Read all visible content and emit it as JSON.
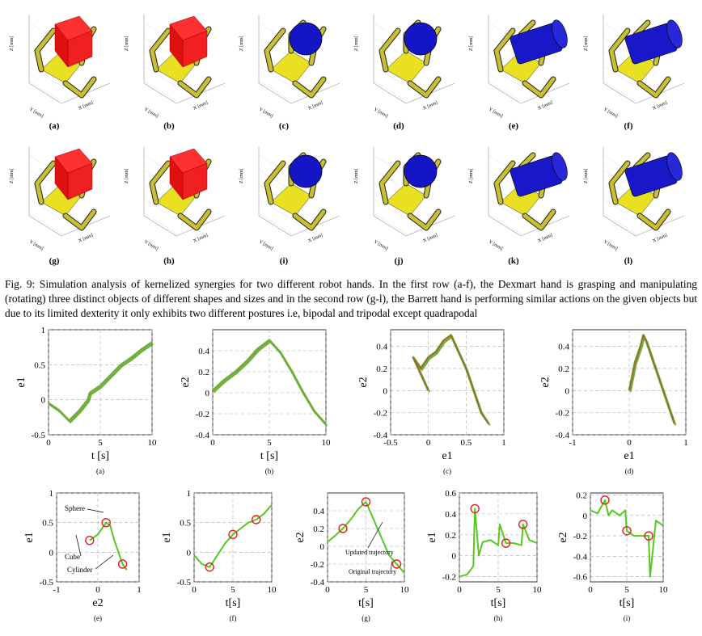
{
  "figure9": {
    "panel_labels": [
      "(a)",
      "(b)",
      "(c)",
      "(d)",
      "(e)",
      "(f)",
      "(g)",
      "(h)",
      "(i)",
      "(j)",
      "(k)",
      "(l)"
    ],
    "axis_labels": {
      "z": "Z [mm]",
      "y": "Y [mm]",
      "x": "X [mm]"
    },
    "caption": "Fig. 9: Simulation analysis of kernelized synergies for two different robot hands. In the first row (a-f), the Dexmart hand is grasping and manipulating (rotating) three distinct objects of different shapes and sizes and in the second row (g-l), the Barrett hand is performing similar actions on the given objects but due to its limited dexterity it only exhibits two different postures i.e, bipodal and tripodal except quadrapodal"
  },
  "figure10": {
    "sub_labels": [
      "(a)",
      "(b)",
      "(c)",
      "(d)",
      "(e)",
      "(f)",
      "(g)",
      "(h)",
      "(i)"
    ],
    "annotations": {
      "sphere": "Sphere",
      "cube": "Cube",
      "cylinder": "Cylinder",
      "updated": "Updated trajectory",
      "original": "Original trajectory"
    },
    "colors": {
      "green": "#6fae3b",
      "bright_green": "#55c81e",
      "red_circle": "#e02020",
      "brown": "#b04a2a"
    }
  },
  "chart_data": [
    {
      "type": "line",
      "id": "a",
      "xlabel": "t [s]",
      "ylabel": "e1",
      "xticks": [
        "0",
        "5",
        "10"
      ],
      "yticks": [
        "-0.5",
        "0",
        "0.5",
        "1"
      ],
      "xlim": [
        0,
        10
      ],
      "ylim": [
        -0.5,
        1
      ],
      "series": [
        {
          "x": [
            0,
            1,
            2,
            3,
            3.8,
            4,
            5,
            6,
            7,
            8,
            9,
            10
          ],
          "y": [
            -0.05,
            -0.15,
            -0.3,
            -0.15,
            0.0,
            0.1,
            0.2,
            0.35,
            0.5,
            0.6,
            0.72,
            0.82
          ]
        }
      ]
    },
    {
      "type": "line",
      "id": "b",
      "xlabel": "t [s]",
      "ylabel": "e2",
      "xticks": [
        "0",
        "5",
        "10"
      ],
      "yticks": [
        "-0.4",
        "-0.2",
        "0",
        "0.2",
        "0.4"
      ],
      "xlim": [
        0,
        10
      ],
      "ylim": [
        -0.4,
        0.6
      ],
      "series": [
        {
          "x": [
            0,
            1,
            2,
            3,
            4,
            5,
            6,
            7,
            8,
            9,
            10
          ],
          "y": [
            0.02,
            0.12,
            0.2,
            0.3,
            0.42,
            0.5,
            0.38,
            0.2,
            0.0,
            -0.18,
            -0.3
          ]
        }
      ]
    },
    {
      "type": "line",
      "id": "c",
      "xlabel": "e1",
      "ylabel": "e2",
      "xticks": [
        "-0.5",
        "0",
        "0.5",
        "1"
      ],
      "yticks": [
        "-0.4",
        "-0.2",
        "0",
        "0.2",
        "0.4"
      ],
      "xlim": [
        -0.5,
        1
      ],
      "ylim": [
        -0.4,
        0.55
      ],
      "series": [
        {
          "x": [
            0.0,
            -0.2,
            -0.1,
            0.0,
            0.1,
            0.2,
            0.3,
            0.4,
            0.5,
            0.6,
            0.7,
            0.8
          ],
          "y": [
            0.0,
            0.3,
            0.2,
            0.3,
            0.35,
            0.45,
            0.5,
            0.35,
            0.2,
            0.0,
            -0.2,
            -0.3
          ]
        }
      ]
    },
    {
      "type": "line",
      "id": "d",
      "xlabel": "e1",
      "ylabel": "e2",
      "xticks": [
        "-1",
        "0",
        "1"
      ],
      "yticks": [
        "-0.4",
        "-0.2",
        "0",
        "0.2",
        "0.4"
      ],
      "xlim": [
        -1,
        1
      ],
      "ylim": [
        -0.4,
        0.55
      ],
      "series": [
        {
          "x": [
            0.0,
            0.05,
            0.1,
            0.2,
            0.25,
            0.3,
            0.4,
            0.5,
            0.6,
            0.7,
            0.8
          ],
          "y": [
            0.0,
            0.12,
            0.25,
            0.4,
            0.5,
            0.45,
            0.3,
            0.15,
            0.0,
            -0.15,
            -0.3
          ]
        }
      ]
    },
    {
      "type": "line",
      "id": "e",
      "xlabel": "e2",
      "ylabel": "e1",
      "xticks": [
        "-1",
        "0",
        "1"
      ],
      "yticks": [
        "-0.5",
        "0",
        "0.5",
        "1"
      ],
      "xlim": [
        -1,
        1
      ],
      "ylim": [
        -0.5,
        1
      ],
      "series": [
        {
          "x": [
            -0.2,
            0.0,
            0.1,
            0.2,
            0.3,
            0.4,
            0.5,
            0.55,
            0.6,
            0.7
          ],
          "y": [
            0.2,
            0.3,
            0.4,
            0.5,
            0.45,
            0.2,
            0.0,
            -0.1,
            -0.2,
            -0.3
          ]
        }
      ]
    },
    {
      "type": "line",
      "id": "f",
      "xlabel": "t[s]",
      "ylabel": "e1",
      "xticks": [
        "0",
        "5",
        "10"
      ],
      "yticks": [
        "-0.5",
        "0",
        "0.5",
        "1"
      ],
      "xlim": [
        0,
        10
      ],
      "ylim": [
        -0.5,
        1
      ],
      "series": [
        {
          "x": [
            0,
            1,
            2,
            3,
            4,
            5,
            6,
            7,
            8,
            9,
            10
          ],
          "y": [
            -0.05,
            -0.2,
            -0.25,
            -0.05,
            0.15,
            0.3,
            0.4,
            0.5,
            0.55,
            0.65,
            0.8
          ]
        }
      ]
    },
    {
      "type": "line",
      "id": "g",
      "xlabel": "t[s]",
      "ylabel": "e2",
      "xticks": [
        "0",
        "5",
        "10"
      ],
      "yticks": [
        "-0.4",
        "-0.2",
        "0",
        "0.2",
        "0.4"
      ],
      "xlim": [
        0,
        10
      ],
      "ylim": [
        -0.4,
        0.6
      ],
      "series": [
        {
          "x": [
            0,
            1,
            2,
            3,
            4,
            5,
            6,
            7,
            8,
            9,
            10
          ],
          "y": [
            0.05,
            0.12,
            0.2,
            0.3,
            0.42,
            0.5,
            0.3,
            0.1,
            -0.1,
            -0.2,
            -0.3
          ]
        }
      ]
    },
    {
      "type": "line",
      "id": "h",
      "xlabel": "t[s]",
      "ylabel": "e1",
      "xticks": [
        "0",
        "5",
        "10"
      ],
      "yticks": [
        "-0.2",
        "0",
        "0.2",
        "0.4",
        "0.6"
      ],
      "xlim": [
        0,
        10
      ],
      "ylim": [
        -0.25,
        0.6
      ],
      "series": [
        {
          "x": [
            0,
            1,
            1.8,
            2,
            2.5,
            3,
            4,
            5,
            5.2,
            6,
            7,
            8,
            8.2,
            9,
            10
          ],
          "y": [
            -0.2,
            -0.18,
            -0.1,
            0.45,
            0.0,
            0.13,
            0.15,
            0.1,
            0.3,
            0.12,
            0.12,
            0.1,
            0.3,
            0.15,
            0.12
          ]
        }
      ]
    },
    {
      "type": "line",
      "id": "i",
      "xlabel": "t[s]",
      "ylabel": "e2",
      "xticks": [
        "0",
        "5",
        "10"
      ],
      "yticks": [
        "-0.6",
        "-0.4",
        "-0.2",
        "0",
        "0.2"
      ],
      "xlim": [
        0,
        10
      ],
      "ylim": [
        -0.65,
        0.22
      ],
      "series": [
        {
          "x": [
            0,
            1,
            2,
            2.5,
            3,
            4,
            4.8,
            5,
            6,
            7,
            8,
            8.2,
            9,
            10
          ],
          "y": [
            0.05,
            0.02,
            0.15,
            0.0,
            0.05,
            0.0,
            0.05,
            -0.15,
            -0.2,
            -0.2,
            -0.2,
            -0.6,
            -0.05,
            -0.1
          ]
        }
      ]
    }
  ]
}
